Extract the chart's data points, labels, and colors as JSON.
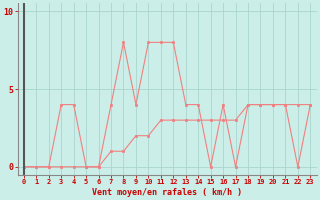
{
  "x": [
    0,
    1,
    2,
    3,
    4,
    5,
    6,
    7,
    8,
    9,
    10,
    11,
    12,
    13,
    14,
    15,
    16,
    17,
    18,
    19,
    20,
    21,
    22,
    23
  ],
  "rafales": [
    0,
    0,
    0,
    4,
    4,
    0,
    0,
    4,
    8,
    4,
    8,
    8,
    8,
    4,
    4,
    0,
    4,
    0,
    4,
    4,
    4,
    4,
    0,
    4
  ],
  "moyen": [
    0,
    0,
    0,
    0,
    0,
    0,
    0,
    1,
    1,
    2,
    2,
    3,
    3,
    3,
    3,
    3,
    3,
    3,
    4,
    4,
    4,
    4,
    4,
    4
  ],
  "line_color": "#f08080",
  "bg_color": "#cceee8",
  "grid_color": "#aad4ce",
  "axis_color": "#cc0000",
  "tick_label_color": "#cc0000",
  "xlabel": "Vent moyen/en rafales ( km/h )",
  "ylabel_ticks": [
    0,
    5,
    10
  ],
  "xlim": [
    -0.5,
    23.5
  ],
  "ylim": [
    -0.5,
    10.5
  ],
  "marker_size": 2,
  "line_width": 0.8,
  "tick_fontsize": 5,
  "xlabel_fontsize": 6
}
